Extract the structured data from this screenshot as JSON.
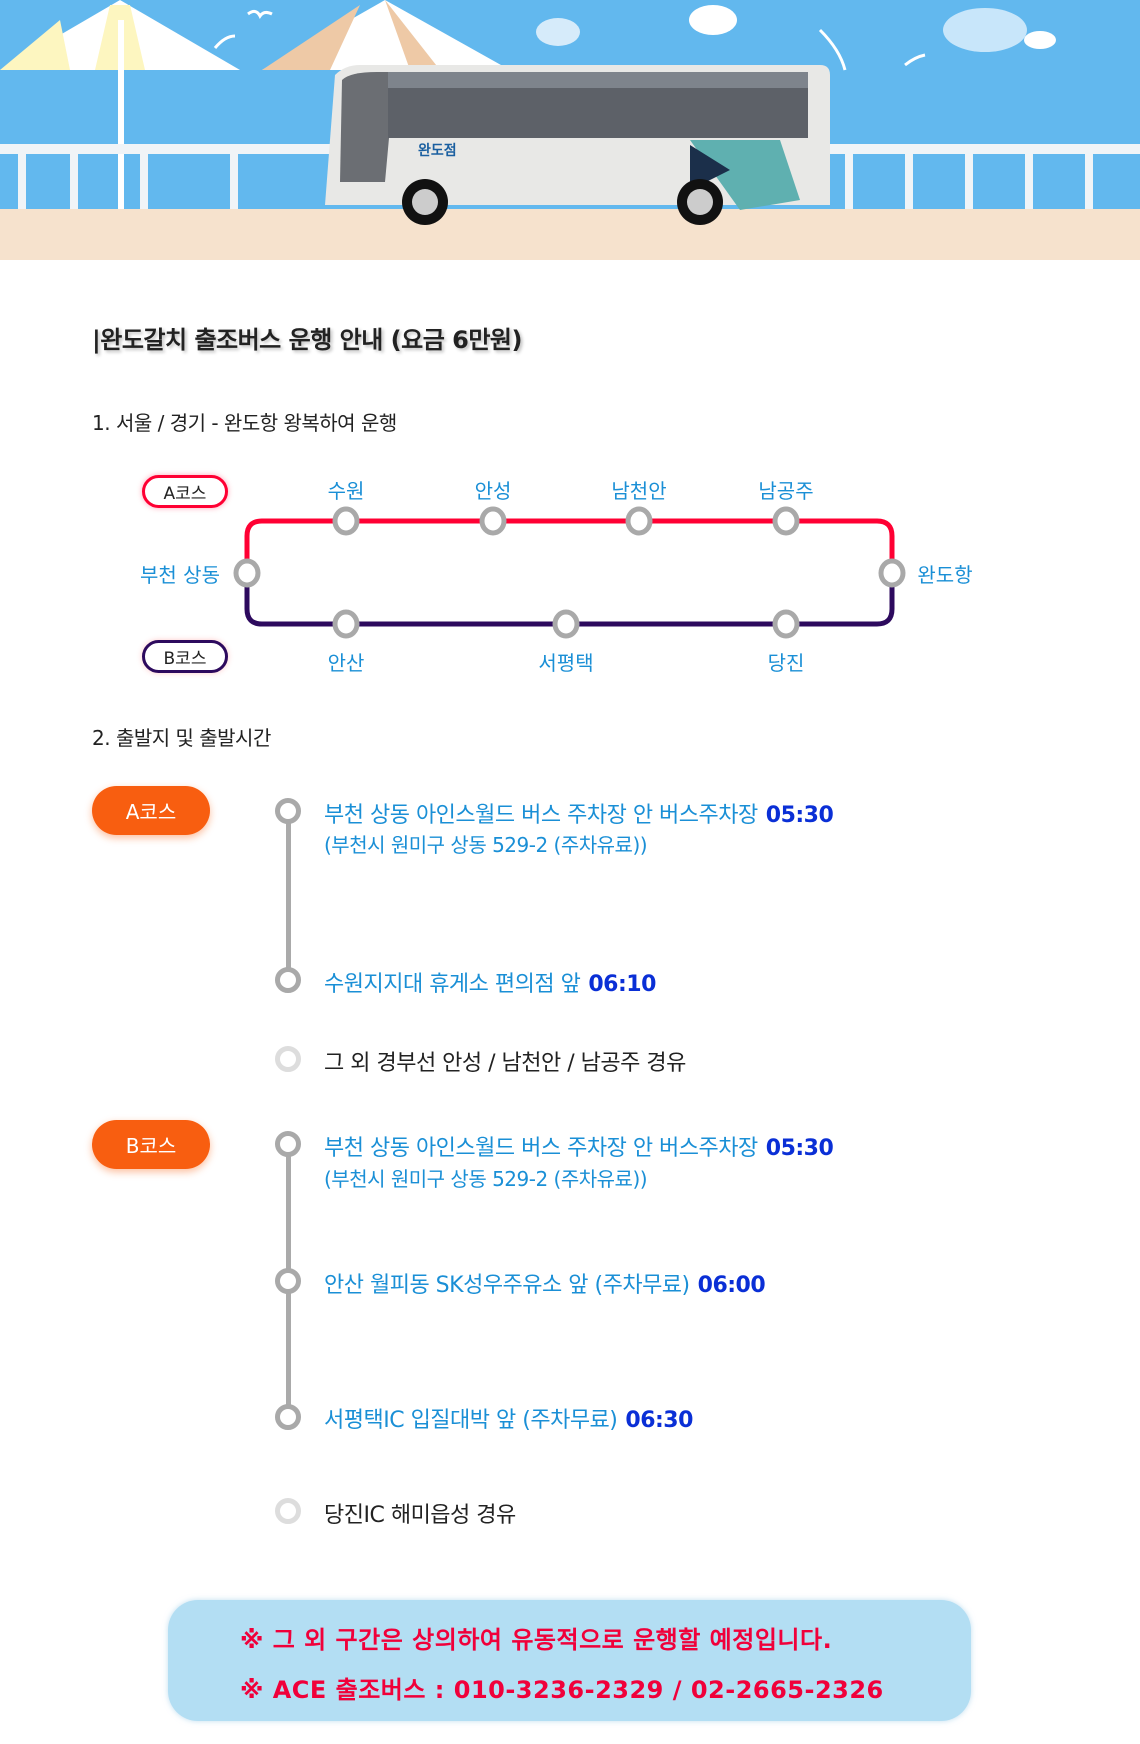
{
  "hero": {
    "bus_logo_text": "완도점",
    "colors": {
      "sky": "#62b8ee",
      "sand": "#f6e2cd"
    }
  },
  "title": "|완도갈치 출조버스 운행 안내 (요금 6만원)",
  "section1": {
    "heading": "1. 서울 / 경기 - 완도항 왕복하여 운행",
    "course_a_label": "A코스",
    "course_b_label": "B코스",
    "origin": "부천 상동",
    "destination": "완도항",
    "a_stops": [
      "수원",
      "안성",
      "남천안",
      "남공주"
    ],
    "b_stops": [
      "안산",
      "서평택",
      "당진"
    ],
    "colors": {
      "a_line": "#ff0033",
      "b_line": "#2d0a5e"
    }
  },
  "section2": {
    "heading": "2. 출발지 및 출발시간",
    "course_a": {
      "label": "A코스",
      "stops": [
        {
          "text": "부천 상동 아인스월드 버스 주차장 안 버스주차장",
          "time": "05:30",
          "sub": "(부천시 원미구 상동 529-2 (주차유료))"
        },
        {
          "text": "수원지지대 휴게소 편의점 앞",
          "time": "06:10"
        }
      ],
      "via": "그 외 경부선 안성 / 남천안 / 남공주 경유"
    },
    "course_b": {
      "label": "B코스",
      "stops": [
        {
          "text": "부천 상동 아인스월드 버스 주차장 안 버스주차장",
          "time": "05:30",
          "sub": "(부천시 원미구 상동 529-2 (주차유료))"
        },
        {
          "text": "안산 월피동 SK성우주유소 앞 (주차무료)",
          "time": "06:00"
        },
        {
          "text": "서평택IC 입질대박 앞 (주차무료)",
          "time": "06:30"
        }
      ],
      "via": "당진IC 해미읍성 경유"
    }
  },
  "notice": {
    "line1": "※ 그 외 구간은 상의하여 유동적으로 운행할 예정입니다.",
    "line2": "※ ACE 출조버스 : 010-3236-2329 / 02-2665-2326"
  }
}
